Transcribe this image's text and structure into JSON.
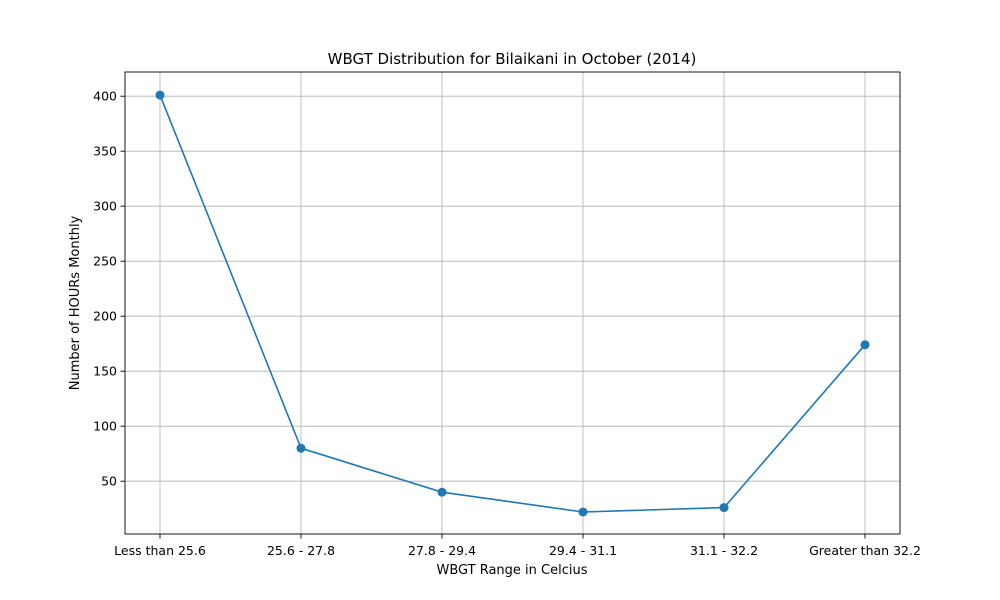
{
  "chart_data": {
    "type": "line",
    "title": "WBGT Distribution for Bilaikani in October (2014)",
    "xlabel": "WBGT Range in Celcius",
    "ylabel": "Number of HOURs Monthly",
    "categories": [
      "Less than 25.6",
      "25.6 - 27.8",
      "27.8 - 29.4",
      "29.4 - 31.1",
      "31.1 - 32.2",
      "Greater than 32.2"
    ],
    "values": [
      401,
      80,
      40,
      22,
      26,
      174
    ],
    "ylim": [
      2,
      422
    ],
    "yticks": [
      50,
      100,
      150,
      200,
      250,
      300,
      350,
      400
    ],
    "grid": true,
    "series_color": "#1f77b4",
    "grid_color": "#b0b0b0",
    "axis_color": "#000000"
  }
}
